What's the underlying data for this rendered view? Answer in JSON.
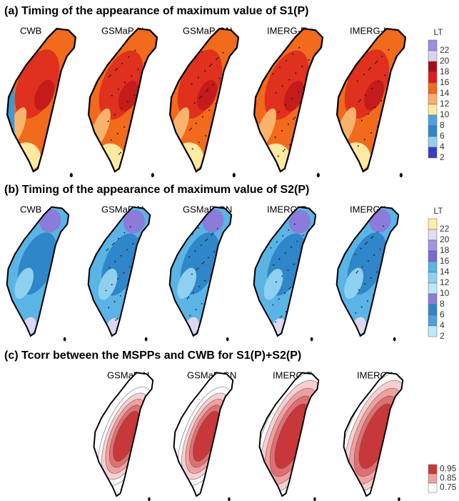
{
  "panels": [
    {
      "title": "(a) Timing of the appearance of maximum value of S1(P)",
      "maps": [
        "CWB",
        "GSMaP-N",
        "GSMaP-GN",
        "IMERG-E",
        "IMERG-L"
      ],
      "legend": {
        "title": "LT",
        "labels": [
          "22",
          "20",
          "18",
          "16",
          "14",
          "12",
          "10",
          "8",
          "6",
          "4",
          "2"
        ]
      }
    },
    {
      "title": "(b) Timing of the appearance of maximum value of S2(P)",
      "maps": [
        "CWB",
        "GSMaP-N",
        "GSMaP-GN",
        "IMERG-E",
        "IMERG-L"
      ],
      "legend": {
        "title": "LT",
        "labels": [
          "22",
          "20",
          "18",
          "16",
          "14",
          "12",
          "10",
          "8",
          "6",
          "4",
          "2"
        ]
      }
    },
    {
      "title": "(c) Tcorr between the MSPPs and CWB for S1(P)+S2(P)",
      "maps": [
        "GSMaP-N",
        "GSMaP-GN",
        "IMERG-E",
        "IMERG-L"
      ],
      "legend": {
        "labels": [
          "0.95",
          "0.85",
          "0.75"
        ]
      }
    }
  ]
}
